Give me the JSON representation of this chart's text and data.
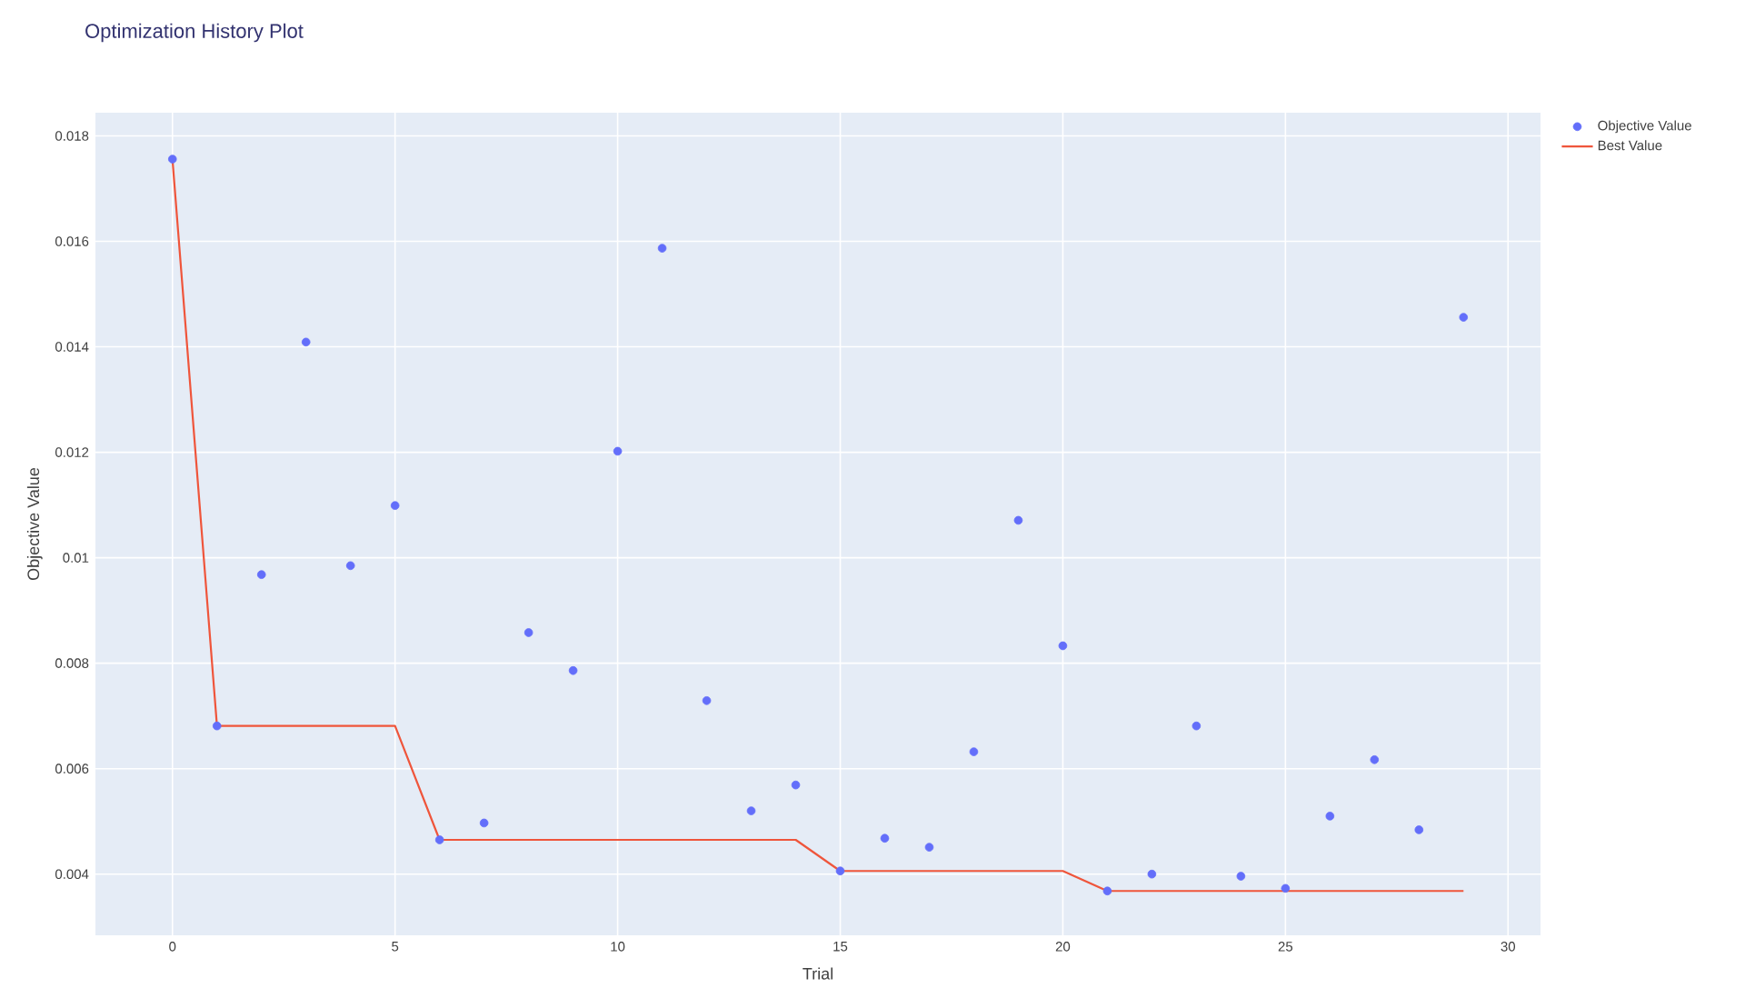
{
  "chart_data": {
    "type": "scatter",
    "title": "Optimization History Plot",
    "xlabel": "Trial",
    "ylabel": "Objective Value",
    "x": [
      0,
      1,
      2,
      3,
      4,
      5,
      6,
      7,
      8,
      9,
      10,
      11,
      12,
      13,
      14,
      15,
      16,
      17,
      18,
      19,
      20,
      21,
      22,
      23,
      24,
      25,
      26,
      27,
      28,
      29
    ],
    "series": [
      {
        "name": "Objective Value",
        "type": "scatter",
        "marker": "circle",
        "color": "#636efa",
        "values": [
          0.01756,
          0.00681,
          0.00968,
          0.01409,
          0.00985,
          0.01099,
          0.00465,
          0.00497,
          0.00858,
          0.00786,
          0.01202,
          0.01587,
          0.00729,
          0.0052,
          0.00569,
          0.00406,
          0.00468,
          0.00451,
          0.00632,
          0.01071,
          0.00833,
          0.00368,
          0.004,
          0.00681,
          0.00396,
          0.00373,
          0.0051,
          0.00617,
          0.00484,
          0.01456
        ]
      },
      {
        "name": "Best Value",
        "type": "line",
        "marker": "none",
        "color": "#ef553b",
        "values": [
          0.01756,
          0.00681,
          0.00681,
          0.00681,
          0.00681,
          0.00681,
          0.00465,
          0.00465,
          0.00465,
          0.00465,
          0.00465,
          0.00465,
          0.00465,
          0.00465,
          0.00465,
          0.00406,
          0.00406,
          0.00406,
          0.00406,
          0.00406,
          0.00406,
          0.00368,
          0.00368,
          0.00368,
          0.00368,
          0.00368,
          0.00368,
          0.00368,
          0.00368,
          0.00368
        ]
      }
    ],
    "xlim": [
      -1.73,
      30.73
    ],
    "ylim": [
      0.00284,
      0.01844
    ],
    "xticks": [
      0,
      5,
      10,
      15,
      20,
      25,
      30
    ],
    "yticks": [
      0.004,
      0.006,
      0.008,
      0.01,
      0.012,
      0.014,
      0.016,
      0.018
    ],
    "grid": true,
    "legend": "top right"
  }
}
